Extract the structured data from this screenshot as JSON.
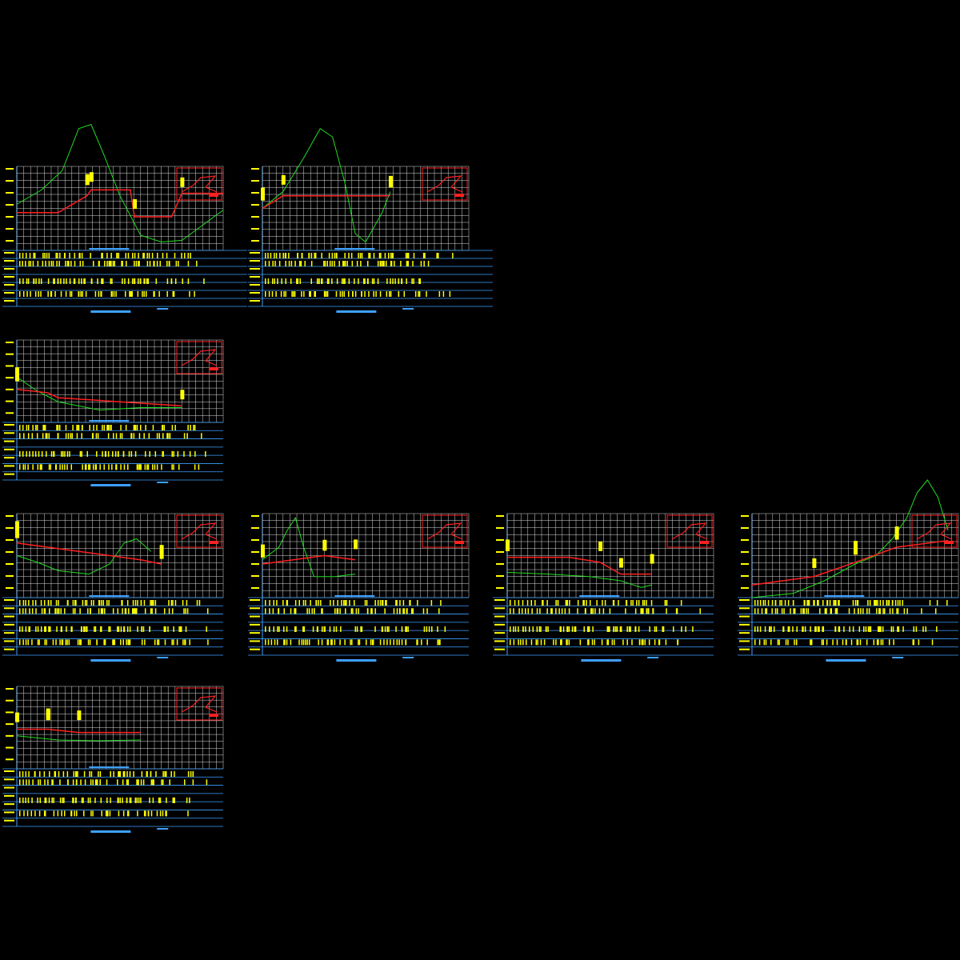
{
  "colors": {
    "background": "#000000",
    "grid": "#ffffff",
    "frame": "#3fa0ff",
    "ground_line": "#22dd22",
    "design_line": "#ff2020",
    "annotation": "#ffff00",
    "title_text": "#3fa0ff"
  },
  "panels": [
    {
      "id": "p1",
      "ground": [
        [
          0,
          0.45
        ],
        [
          0.12,
          0.28
        ],
        [
          0.22,
          0.05
        ],
        [
          0.3,
          -0.45
        ],
        [
          0.36,
          -0.5
        ],
        [
          0.42,
          -0.15
        ],
        [
          0.5,
          0.35
        ],
        [
          0.6,
          0.82
        ],
        [
          0.7,
          0.9
        ],
        [
          0.8,
          0.88
        ],
        [
          0.9,
          0.7
        ],
        [
          1,
          0.52
        ]
      ],
      "design": [
        [
          0,
          0.55
        ],
        [
          0.2,
          0.55
        ],
        [
          0.34,
          0.35
        ],
        [
          0.36,
          0.28
        ],
        [
          0.55,
          0.28
        ],
        [
          0.57,
          0.6
        ],
        [
          0.75,
          0.6
        ],
        [
          0.8,
          0.32
        ],
        [
          1,
          0.32
        ]
      ],
      "ground_peak": true
    },
    {
      "id": "p2",
      "ground": [
        [
          0,
          0.5
        ],
        [
          0.1,
          0.3
        ],
        [
          0.2,
          -0.1
        ],
        [
          0.28,
          -0.45
        ],
        [
          0.34,
          -0.35
        ],
        [
          0.4,
          0.2
        ],
        [
          0.45,
          0.8
        ],
        [
          0.5,
          0.9
        ],
        [
          0.58,
          0.55
        ],
        [
          0.62,
          0.3
        ]
      ],
      "design": [
        [
          0,
          0.5
        ],
        [
          0.1,
          0.35
        ],
        [
          0.62,
          0.35
        ]
      ],
      "ground_peak": true
    },
    {
      "id": "p3",
      "ground": [
        [
          0,
          0.45
        ],
        [
          0.1,
          0.62
        ],
        [
          0.2,
          0.75
        ],
        [
          0.4,
          0.85
        ],
        [
          0.6,
          0.82
        ],
        [
          0.8,
          0.82
        ]
      ],
      "design": [
        [
          0,
          0.6
        ],
        [
          0.15,
          0.64
        ],
        [
          0.2,
          0.7
        ],
        [
          0.8,
          0.8
        ]
      ],
      "ground_peak": false
    },
    {
      "id": "p4",
      "ground": [
        [
          0,
          0.5
        ],
        [
          0.1,
          0.58
        ],
        [
          0.2,
          0.68
        ],
        [
          0.35,
          0.72
        ],
        [
          0.45,
          0.6
        ],
        [
          0.52,
          0.35
        ],
        [
          0.58,
          0.3
        ],
        [
          0.65,
          0.45
        ]
      ],
      "design": [
        [
          0,
          0.35
        ],
        [
          0.3,
          0.45
        ],
        [
          0.6,
          0.55
        ],
        [
          0.7,
          0.6
        ]
      ],
      "ground_peak": false
    },
    {
      "id": "p5",
      "ground": [
        [
          0,
          0.55
        ],
        [
          0.08,
          0.4
        ],
        [
          0.12,
          0.2
        ],
        [
          0.16,
          0.05
        ],
        [
          0.2,
          0.4
        ],
        [
          0.25,
          0.75
        ],
        [
          0.35,
          0.75
        ],
        [
          0.45,
          0.72
        ]
      ],
      "design": [
        [
          0,
          0.6
        ],
        [
          0.15,
          0.55
        ],
        [
          0.3,
          0.5
        ],
        [
          0.45,
          0.55
        ]
      ],
      "ground_peak": false
    },
    {
      "id": "p6",
      "ground": [
        [
          0,
          0.7
        ],
        [
          0.2,
          0.72
        ],
        [
          0.4,
          0.75
        ],
        [
          0.55,
          0.8
        ],
        [
          0.65,
          0.88
        ],
        [
          0.7,
          0.85
        ]
      ],
      "design": [
        [
          0,
          0.52
        ],
        [
          0.3,
          0.52
        ],
        [
          0.45,
          0.58
        ],
        [
          0.55,
          0.72
        ],
        [
          0.7,
          0.72
        ]
      ],
      "ground_peak": false
    },
    {
      "id": "p7",
      "ground": [
        [
          0,
          1
        ],
        [
          0.2,
          0.95
        ],
        [
          0.35,
          0.8
        ],
        [
          0.5,
          0.6
        ],
        [
          0.6,
          0.5
        ],
        [
          0.68,
          0.3
        ],
        [
          0.75,
          0.05
        ],
        [
          0.8,
          -0.25
        ],
        [
          0.85,
          -0.4
        ],
        [
          0.9,
          -0.2
        ],
        [
          0.95,
          0.2
        ]
      ],
      "design": [
        [
          0,
          0.85
        ],
        [
          0.3,
          0.75
        ],
        [
          0.5,
          0.58
        ],
        [
          0.7,
          0.4
        ],
        [
          0.95,
          0.32
        ]
      ],
      "ground_peak": true
    },
    {
      "id": "p8",
      "ground": [
        [
          0,
          0.6
        ],
        [
          0.2,
          0.65
        ],
        [
          0.4,
          0.66
        ],
        [
          0.6,
          0.65
        ]
      ],
      "design": [
        [
          0,
          0.52
        ],
        [
          0.15,
          0.52
        ],
        [
          0.3,
          0.56
        ],
        [
          0.6,
          0.56
        ]
      ],
      "ground_peak": false
    }
  ]
}
